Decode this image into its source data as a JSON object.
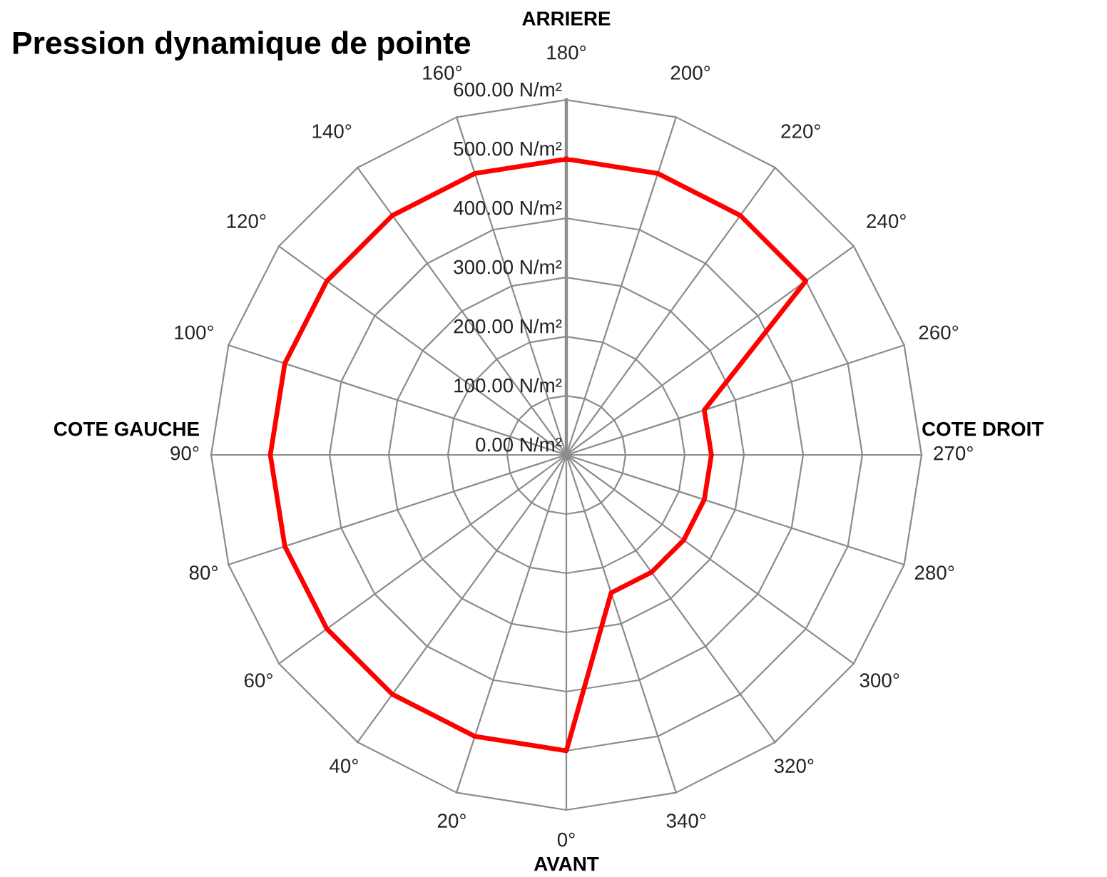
{
  "chart_data": {
    "type": "radar",
    "title": "Pression dynamique de pointe",
    "categories": [
      "180°",
      "200°",
      "220°",
      "240°",
      "260°",
      "270°",
      "280°",
      "300°",
      "320°",
      "340°",
      "0°",
      "20°",
      "40°",
      "60°",
      "80°",
      "90°",
      "100°",
      "120°",
      "140°",
      "160°"
    ],
    "series": [
      {
        "color": "#ff0000",
        "values": [
          500,
          500,
          500,
          500,
          245,
          245,
          245,
          245,
          245,
          245,
          500,
          500,
          500,
          500,
          500,
          500,
          500,
          500,
          500,
          500
        ]
      }
    ],
    "ylim": [
      0,
      600
    ],
    "yticks": [
      {
        "value": 0,
        "label": "0.00 N/m²"
      },
      {
        "value": 100,
        "label": "100.00 N/m²"
      },
      {
        "value": 200,
        "label": "200.00 N/m²"
      },
      {
        "value": 300,
        "label": "300.00 N/m²"
      },
      {
        "value": 400,
        "label": "400.00 N/m²"
      },
      {
        "value": 500,
        "label": "500.00 N/m²"
      },
      {
        "value": 600,
        "label": "600.00 N/m²"
      }
    ],
    "grid": true,
    "annotations": [
      {
        "text": "ARRIERE",
        "x": "180°"
      },
      {
        "text": "COTE DROIT",
        "x": "270°"
      },
      {
        "text": "AVANT",
        "x": "0°"
      },
      {
        "text": "COTE GAUCHE",
        "x": "90°"
      }
    ]
  }
}
